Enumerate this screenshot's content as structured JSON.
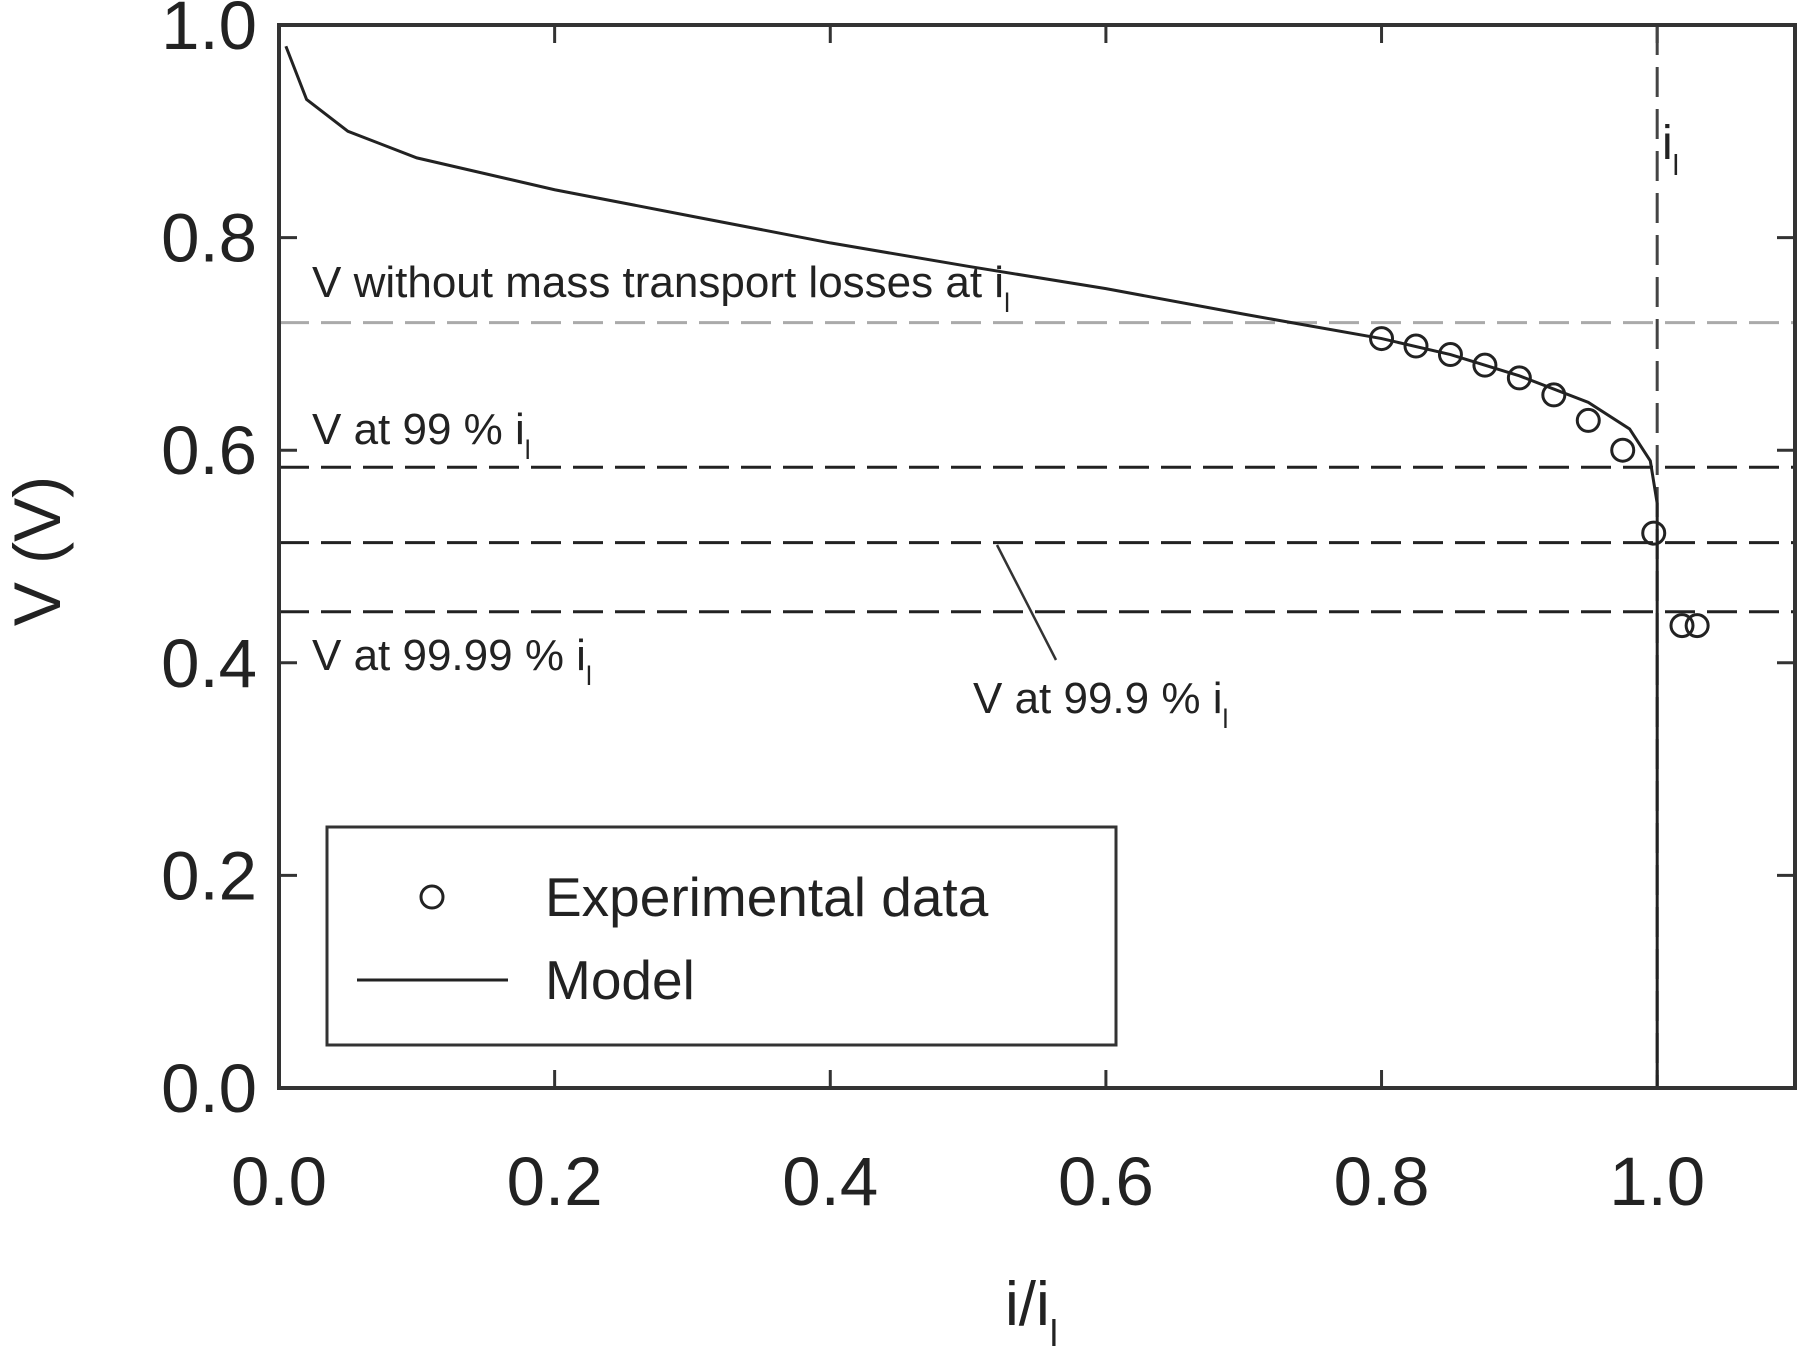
{
  "chart_data": {
    "type": "line",
    "x_label": {
      "text": "i/i",
      "sub": "l"
    },
    "y_label": "V (V)",
    "xlim": [
      0,
      1.1
    ],
    "ylim": [
      0,
      1
    ],
    "xticks": [
      {
        "value": 0,
        "label": "0.0"
      },
      {
        "value": 0.2,
        "label": "0.2"
      },
      {
        "value": 0.4,
        "label": "0.4"
      },
      {
        "value": 0.6,
        "label": "0.6"
      },
      {
        "value": 0.8,
        "label": "0.8"
      },
      {
        "value": 1,
        "label": "1.0"
      }
    ],
    "yticks": [
      {
        "value": 0,
        "label": "0.0"
      },
      {
        "value": 0.2,
        "label": "0.2"
      },
      {
        "value": 0.4,
        "label": "0.4"
      },
      {
        "value": 0.6,
        "label": "0.6"
      },
      {
        "value": 0.8,
        "label": "0.8"
      },
      {
        "value": 1,
        "label": "1.0"
      }
    ],
    "series": [
      {
        "name": "Experimental data",
        "type": "scatter",
        "color": "#222222",
        "x": [
          0.8,
          0.825,
          0.85,
          0.875,
          0.9,
          0.925,
          0.95,
          0.975,
          0.9975,
          1.018,
          1.029
        ],
        "values": [
          0.705,
          0.698,
          0.69,
          0.68,
          0.668,
          0.652,
          0.628,
          0.6,
          0.522,
          0.435,
          0.435
        ]
      },
      {
        "name": "Model",
        "type": "line",
        "color": "#222222",
        "x": [
          0.005,
          0.02,
          0.05,
          0.1,
          0.2,
          0.3,
          0.4,
          0.5,
          0.6,
          0.7,
          0.8,
          0.85,
          0.9,
          0.95,
          0.98,
          0.995,
          1.0,
          1.0
        ],
        "values": [
          0.98,
          0.93,
          0.9,
          0.875,
          0.845,
          0.82,
          0.795,
          0.773,
          0.752,
          0.728,
          0.705,
          0.69,
          0.67,
          0.645,
          0.62,
          0.59,
          0.55,
          0
        ]
      }
    ],
    "hlines": [
      {
        "y": 0.72,
        "color": "#aaaaaa"
      },
      {
        "y": 0.584,
        "color": "#222222"
      },
      {
        "y": 0.513,
        "color": "#222222"
      },
      {
        "y": 0.448,
        "color": "#222222"
      }
    ],
    "vlines": [
      {
        "x": 1,
        "color": "#444444"
      }
    ],
    "annotations": [
      {
        "text": "V without mass transport losses at i",
        "sub": "l"
      },
      {
        "text": "V at 99 % i",
        "sub": "l"
      },
      {
        "text": "V at 99.99 % i",
        "sub": "l"
      },
      {
        "text": "V at 99.9 % i",
        "sub": "l"
      },
      {
        "text": "i",
        "sub": "l"
      }
    ]
  }
}
